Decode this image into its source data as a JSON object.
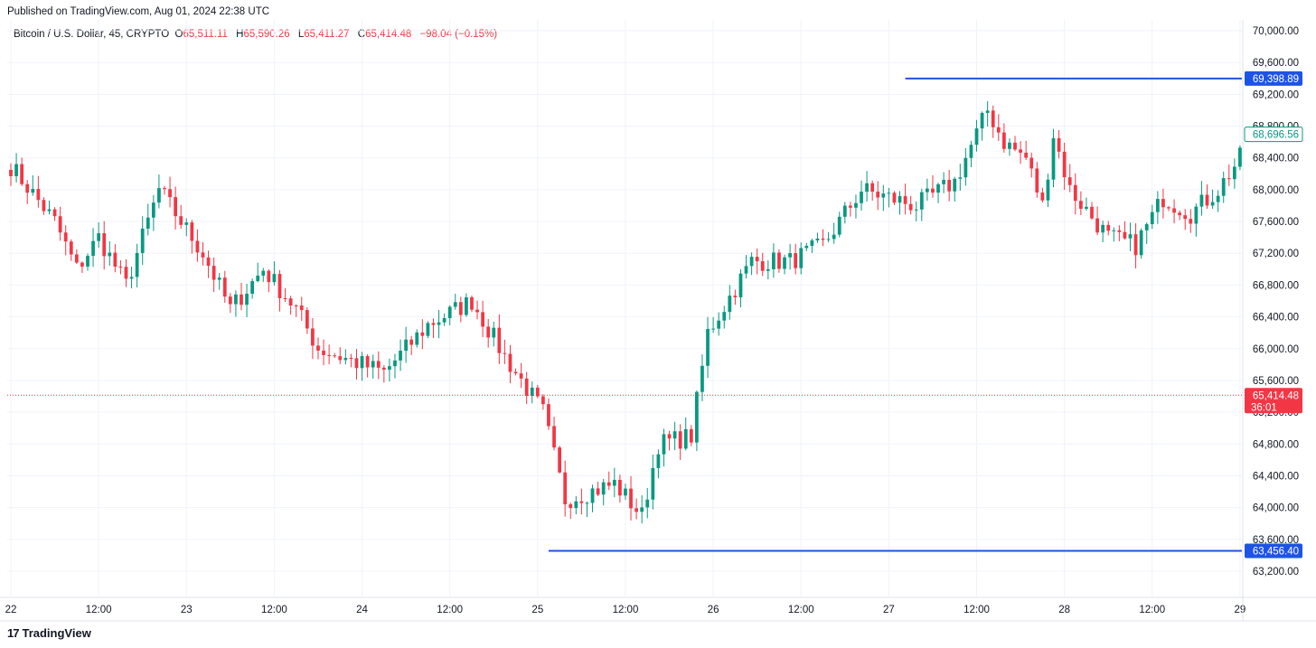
{
  "published": "Published on TradingView.com, Aug 01, 2024 22:38 UTC",
  "legend": {
    "symbol": "Bitcoin / U.S. Dollar, 45, CRYPTO",
    "o_label": "O",
    "o_value": "65,511.11",
    "h_label": "H",
    "h_value": "65,590.26",
    "l_label": "L",
    "l_value": "65,411.27",
    "c_label": "C",
    "c_value": "65,414.48",
    "change": "−98.04 (−0.15%)"
  },
  "footer": {
    "brand": "TradingView",
    "logo_text": "17"
  },
  "colors": {
    "up": "#089981",
    "down": "#f23645",
    "level": "#1e53e5",
    "grid": "#f0f3fa"
  },
  "chart_data": {
    "type": "candlestick",
    "title": "Bitcoin / U.S. Dollar, 45, CRYPTO",
    "ylim": [
      62800,
      70200
    ],
    "y_ticks": [
      63200,
      63600,
      64000,
      64400,
      64800,
      65200,
      65600,
      66000,
      66400,
      66800,
      67200,
      67600,
      68000,
      68400,
      68800,
      69200,
      69600,
      70000
    ],
    "y_tick_labels": [
      "63,200.00",
      "63,600.00",
      "64,000.00",
      "64,400.00",
      "64,800.00",
      "65,200.00",
      "65,600.00",
      "66,000.00",
      "66,400.00",
      "66,800.00",
      "67,200.00",
      "67,600.00",
      "68,000.00",
      "68,400.00",
      "68,800.00",
      "69,200.00",
      "69,600.00",
      "70,000.00"
    ],
    "x_ticks": [
      {
        "bar": 0,
        "label": "22"
      },
      {
        "bar": 16,
        "label": "12:00"
      },
      {
        "bar": 32,
        "label": "23"
      },
      {
        "bar": 48,
        "label": "12:00"
      },
      {
        "bar": 64,
        "label": "24"
      },
      {
        "bar": 80,
        "label": "12:00"
      },
      {
        "bar": 96,
        "label": "25"
      },
      {
        "bar": 112,
        "label": "12:00"
      },
      {
        "bar": 128,
        "label": "26"
      },
      {
        "bar": 144,
        "label": "12:00"
      },
      {
        "bar": 160,
        "label": "27"
      },
      {
        "bar": 176,
        "label": "12:00"
      },
      {
        "bar": 192,
        "label": "28"
      },
      {
        "bar": 208,
        "label": "12:00"
      },
      {
        "bar": 224,
        "label": "29"
      }
    ],
    "current_price": {
      "value": 65414.48,
      "label": "65,414.48",
      "countdown": "36:01"
    },
    "last_close_tag": {
      "value": 68696.56,
      "label": "68,696.56"
    },
    "levels": [
      {
        "value": 69398.89,
        "label": "69,398.89",
        "from_bar": 163
      },
      {
        "value": 63456.4,
        "label": "63,456.40",
        "from_bar": 98
      }
    ],
    "key_points": [
      {
        "bar": 0,
        "close": 68300
      },
      {
        "bar": 8,
        "close": 67600
      },
      {
        "bar": 12,
        "close": 67000
      },
      {
        "bar": 16,
        "close": 67400
      },
      {
        "bar": 21,
        "close": 66800
      },
      {
        "bar": 27,
        "close": 68000
      },
      {
        "bar": 35,
        "close": 67200
      },
      {
        "bar": 40,
        "close": 66500
      },
      {
        "bar": 46,
        "close": 67000
      },
      {
        "bar": 52,
        "close": 66500
      },
      {
        "bar": 56,
        "close": 66000
      },
      {
        "bar": 60,
        "close": 65900
      },
      {
        "bar": 68,
        "close": 65700
      },
      {
        "bar": 76,
        "close": 66300
      },
      {
        "bar": 84,
        "close": 66600
      },
      {
        "bar": 90,
        "close": 65900
      },
      {
        "bar": 97,
        "close": 65200
      },
      {
        "bar": 101,
        "close": 64100
      },
      {
        "bar": 110,
        "close": 64300
      },
      {
        "bar": 115,
        "close": 63900
      },
      {
        "bar": 118,
        "close": 64800
      },
      {
        "bar": 124,
        "close": 64900
      },
      {
        "bar": 127,
        "close": 66200
      },
      {
        "bar": 135,
        "close": 67100
      },
      {
        "bar": 142,
        "close": 67100
      },
      {
        "bar": 148,
        "close": 67300
      },
      {
        "bar": 155,
        "close": 68000
      },
      {
        "bar": 165,
        "close": 67800
      },
      {
        "bar": 172,
        "close": 68100
      },
      {
        "bar": 178,
        "close": 69000
      },
      {
        "bar": 181,
        "close": 68600
      },
      {
        "bar": 185,
        "close": 68400
      },
      {
        "bar": 188,
        "close": 67800
      },
      {
        "bar": 190,
        "close": 68700
      },
      {
        "bar": 193,
        "close": 68000
      },
      {
        "bar": 200,
        "close": 67400
      },
      {
        "bar": 205,
        "close": 67300
      },
      {
        "bar": 210,
        "close": 67900
      },
      {
        "bar": 215,
        "close": 67700
      },
      {
        "bar": 220,
        "close": 68000
      },
      {
        "bar": 224,
        "close": 68400
      }
    ]
  }
}
